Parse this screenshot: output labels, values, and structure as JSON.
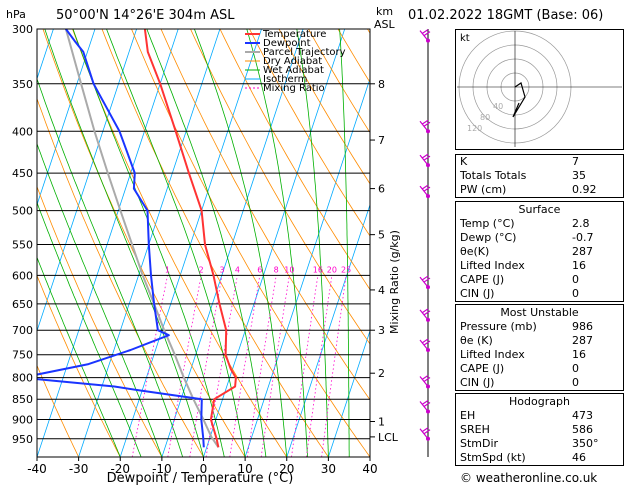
{
  "header": {
    "y_unit": "hPa",
    "location": "50°00'N  14°26'E  304m  ASL",
    "alt_unit": "km",
    "alt_unit2": "ASL",
    "datetime": "01.02.2022  18GMT  (Base: 06)"
  },
  "legend": [
    "Temperature",
    "Dewpoint",
    "Parcel Trajectory",
    "Dry Adiabat",
    "Wet Adiabat",
    "Isotherm",
    "Mixing Ratio"
  ],
  "colors": {
    "temperature": "#ff3333",
    "dewpoint": "#1a34ff",
    "parcel": "#aaaaaa",
    "dry_adiabat": "#ff8c00",
    "wet_adiabat": "#00b000",
    "isotherm": "#00aaff",
    "mixing_ratio": "#ff00cc",
    "wind": "#cc00cc"
  },
  "chart_data": {
    "type": "line",
    "title": "Skew-T log-P sounding",
    "xlabel": "Dewpoint / Temperature (°C)",
    "ylabel": "hPa",
    "ylabel_right": "Mixing Ratio (g/kg)",
    "xlim": [
      -40,
      40
    ],
    "ylim": [
      300,
      1000
    ],
    "x_ticks": [
      "-40",
      "-30",
      "-20",
      "-10",
      "0",
      "10",
      "20",
      "30",
      "40"
    ],
    "p_ticks": [
      300,
      350,
      400,
      450,
      500,
      550,
      600,
      650,
      700,
      750,
      800,
      850,
      900,
      950
    ],
    "km_ticks": [
      {
        "km": "8",
        "p": 350
      },
      {
        "km": "7",
        "p": 410
      },
      {
        "km": "6",
        "p": 470
      },
      {
        "km": "5",
        "p": 535
      },
      {
        "km": "4",
        "p": 625
      },
      {
        "km": "3",
        "p": 700
      },
      {
        "km": "2",
        "p": 790
      },
      {
        "km": "1",
        "p": 905
      },
      {
        "km": "LCL",
        "p": 945
      }
    ],
    "mixing_ratio_labels": [
      "1",
      "2",
      "3",
      "4",
      "6",
      "8",
      "10",
      "16",
      "20",
      "25"
    ],
    "temperature": [
      [
        973,
        2.8
      ],
      [
        950,
        1.7
      ],
      [
        900,
        -1.2
      ],
      [
        850,
        -2.0
      ],
      [
        820,
        2.0
      ],
      [
        800,
        1.5
      ],
      [
        780,
        -0.5
      ],
      [
        750,
        -2.8
      ],
      [
        700,
        -4.6
      ],
      [
        650,
        -8.3
      ],
      [
        600,
        -12.0
      ],
      [
        550,
        -16.5
      ],
      [
        500,
        -20.0
      ],
      [
        450,
        -26.0
      ],
      [
        400,
        -32.5
      ],
      [
        350,
        -40.0
      ],
      [
        320,
        -45.5
      ],
      [
        300,
        -48.0
      ]
    ],
    "dewpoint": [
      [
        973,
        -0.7
      ],
      [
        950,
        -1.5
      ],
      [
        900,
        -3.5
      ],
      [
        850,
        -5.0
      ],
      [
        830,
        -20.0
      ],
      [
        820,
        -27.0
      ],
      [
        800,
        -50.0
      ],
      [
        770,
        -35.0
      ],
      [
        740,
        -26.0
      ],
      [
        710,
        -18.0
      ],
      [
        700,
        -21.0
      ],
      [
        650,
        -24.0
      ],
      [
        600,
        -27.0
      ],
      [
        550,
        -30.0
      ],
      [
        500,
        -33.0
      ],
      [
        470,
        -38.0
      ],
      [
        450,
        -39.0
      ],
      [
        400,
        -46.0
      ],
      [
        350,
        -56.0
      ],
      [
        320,
        -61.0
      ],
      [
        310,
        -64.0
      ],
      [
        300,
        -67.0
      ]
    ],
    "parcel": [
      [
        973,
        2.8
      ],
      [
        945,
        0.3
      ],
      [
        900,
        -3.0
      ],
      [
        850,
        -7.0
      ],
      [
        800,
        -11.0
      ],
      [
        750,
        -15.0
      ],
      [
        700,
        -19.5
      ],
      [
        650,
        -24.0
      ],
      [
        600,
        -29.0
      ],
      [
        550,
        -34.0
      ],
      [
        500,
        -39.5
      ],
      [
        450,
        -45.5
      ],
      [
        400,
        -52.0
      ],
      [
        350,
        -59.0
      ],
      [
        300,
        -67.0
      ]
    ]
  },
  "hodograph": {
    "label": "kt",
    "ring_labels": [
      "40",
      "80",
      "120"
    ]
  },
  "indices": [
    {
      "label": "K",
      "value": "7"
    },
    {
      "label": "Totals Totals",
      "value": "35"
    },
    {
      "label": "PW (cm)",
      "value": "0.92"
    }
  ],
  "surface": {
    "title": "Surface",
    "rows": [
      {
        "label": "Temp (°C)",
        "value": "2.8"
      },
      {
        "label": "Dewp (°C)",
        "value": "-0.7"
      },
      {
        "label": "θe(K)",
        "value": "287"
      },
      {
        "label": "Lifted Index",
        "value": "16"
      },
      {
        "label": "CAPE (J)",
        "value": "0"
      },
      {
        "label": "CIN (J)",
        "value": "0"
      }
    ]
  },
  "most_unstable": {
    "title": "Most Unstable",
    "rows": [
      {
        "label": "Pressure (mb)",
        "value": "986"
      },
      {
        "label": "θe (K)",
        "value": "287"
      },
      {
        "label": "Lifted Index",
        "value": "16"
      },
      {
        "label": "CAPE (J)",
        "value": "0"
      },
      {
        "label": "CIN (J)",
        "value": "0"
      }
    ]
  },
  "hodograph_table": {
    "title": "Hodograph",
    "rows": [
      {
        "label": "EH",
        "value": "473"
      },
      {
        "label": "SREH",
        "value": "586"
      },
      {
        "label": "StmDir",
        "value": "350°"
      },
      {
        "label": "StmSpd (kt)",
        "value": "46"
      }
    ]
  },
  "footer": "© weatheronline.co.uk"
}
